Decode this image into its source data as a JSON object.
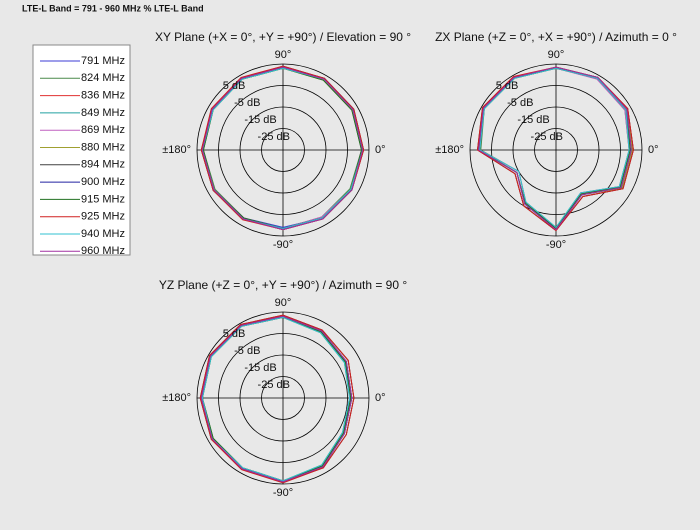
{
  "title": "LTE-L Band = 791 - 960 MHz % LTE-L Band",
  "legend": [
    {
      "name": "791 MHz",
      "color": "#3b3bd6"
    },
    {
      "name": "824 MHz",
      "color": "#4a8a4a"
    },
    {
      "name": "836 MHz",
      "color": "#e03030"
    },
    {
      "name": "849 MHz",
      "color": "#20a0a0"
    },
    {
      "name": "869 MHz",
      "color": "#c060c0"
    },
    {
      "name": "880 MHz",
      "color": "#a0a030"
    },
    {
      "name": "894 MHz",
      "color": "#404040"
    },
    {
      "name": "900 MHz",
      "color": "#2020a0"
    },
    {
      "name": "915 MHz",
      "color": "#207020"
    },
    {
      "name": "925 MHz",
      "color": "#d02020"
    },
    {
      "name": "940 MHz",
      "color": "#30c0d0"
    },
    {
      "name": "960 MHz",
      "color": "#a030a0"
    }
  ],
  "chart_data": [
    {
      "type": "polar",
      "title": "XY Plane (+X = 0°, +Y = +90°) / Elevation = 90 °",
      "theta": [
        0,
        30,
        60,
        90,
        120,
        150,
        180,
        210,
        240,
        270,
        300,
        330
      ],
      "rlim": [
        -35,
        5
      ],
      "rticks": [
        {
          "value": 5,
          "label": "5 dB"
        },
        {
          "value": -5,
          "label": "-5 dB"
        },
        {
          "value": -15,
          "label": "-15 dB"
        },
        {
          "value": -25,
          "label": "-25 dB"
        }
      ],
      "thetaticks": [
        {
          "value": 90,
          "label": "90°"
        },
        {
          "value": 0,
          "label": "0°"
        },
        {
          "value": -90,
          "label": "-90°"
        },
        {
          "value": 180,
          "label": "±180°"
        }
      ],
      "series": [
        {
          "values": [
            2,
            2.5,
            3,
            3.5,
            3.5,
            3,
            2.5,
            2,
            1.5,
            1,
            1.5,
            1.5
          ]
        },
        {
          "values": [
            1.5,
            2,
            3,
            3,
            3,
            2.5,
            2,
            1.5,
            1.5,
            1.5,
            1,
            1
          ]
        },
        {
          "values": [
            2.5,
            3,
            3.5,
            3.5,
            3.5,
            3,
            3,
            2.5,
            2,
            2,
            2,
            2
          ]
        },
        {
          "values": [
            2,
            2.5,
            3,
            3,
            3,
            3,
            2.5,
            2,
            2,
            1.5,
            1.5,
            2
          ]
        },
        {
          "values": [
            1.5,
            2.5,
            3,
            3.5,
            3,
            2.5,
            2.5,
            2,
            1.5,
            1.5,
            1,
            1.5
          ]
        },
        {
          "values": [
            2,
            2,
            2.5,
            3,
            3,
            3,
            2.5,
            2,
            2,
            2,
            1.5,
            1.5
          ]
        },
        {
          "values": [
            2.5,
            3,
            3.5,
            4,
            3.5,
            3,
            3,
            2.5,
            2,
            2,
            2,
            2
          ]
        },
        {
          "values": [
            2,
            3,
            3.5,
            3.5,
            3.5,
            3,
            2.5,
            2.5,
            2,
            1.5,
            1.5,
            2
          ]
        },
        {
          "values": [
            1.5,
            2,
            2.5,
            3,
            3,
            2.5,
            2,
            2,
            1.5,
            1.5,
            1.5,
            1.5
          ]
        },
        {
          "values": [
            2.5,
            3,
            3.5,
            4,
            4,
            3.5,
            3,
            2.5,
            2.5,
            2,
            2,
            2
          ]
        },
        {
          "values": [
            2,
            2.5,
            3,
            3,
            3,
            2.5,
            2.5,
            2,
            2,
            1.5,
            1.5,
            1.5
          ]
        },
        {
          "values": [
            2,
            2.5,
            3,
            3.5,
            3.5,
            3,
            2.5,
            2,
            2,
            2,
            2,
            2
          ]
        }
      ]
    },
    {
      "type": "polar",
      "title": "ZX Plane (+Z = 0°, +X = +90°) / Azimuth = 0 °",
      "theta": [
        0,
        30,
        60,
        90,
        120,
        150,
        180,
        210,
        240,
        270,
        300,
        330
      ],
      "rlim": [
        -35,
        5
      ],
      "rticks": [
        {
          "value": 5,
          "label": "5 dB"
        },
        {
          "value": -5,
          "label": "-5 dB"
        },
        {
          "value": -15,
          "label": "-15 dB"
        },
        {
          "value": -25,
          "label": "-25 dB"
        }
      ],
      "thetaticks": [
        {
          "value": 90,
          "label": "90°"
        },
        {
          "value": 0,
          "label": "0°"
        },
        {
          "value": -90,
          "label": "-90°"
        },
        {
          "value": 180,
          "label": "±180°"
        }
      ],
      "series": [
        {
          "values": [
            0,
            3,
            4,
            3,
            4,
            4,
            1,
            -14,
            -6,
            2,
            -11,
            0
          ]
        },
        {
          "values": [
            -1,
            2,
            3.5,
            3,
            3.5,
            3.5,
            0,
            -15,
            -7,
            1,
            -12,
            -1
          ]
        },
        {
          "values": [
            1,
            3.5,
            4,
            3.5,
            4,
            4,
            1.5,
            -13,
            -5,
            2.5,
            -10,
            1
          ]
        },
        {
          "values": [
            0,
            2.5,
            3.5,
            3,
            4,
            4,
            1,
            -14,
            -6,
            2,
            -11,
            0
          ]
        },
        {
          "values": [
            -1,
            2,
            3,
            3,
            3.5,
            3.5,
            0.5,
            -15,
            -7,
            1.5,
            -12,
            -1
          ]
        },
        {
          "values": [
            0.5,
            3,
            4,
            3.5,
            4,
            4,
            1,
            -14,
            -6,
            2,
            -11,
            0.5
          ]
        },
        {
          "values": [
            1,
            3.5,
            4,
            3.5,
            4,
            4.5,
            1.5,
            -13,
            -5,
            2.5,
            -10,
            1
          ]
        },
        {
          "values": [
            0,
            3,
            4,
            3,
            4,
            4,
            1,
            -14,
            -6,
            2,
            -11,
            0
          ]
        },
        {
          "values": [
            -0.5,
            2.5,
            3.5,
            3,
            3.5,
            3.5,
            0.5,
            -14,
            -6.5,
            1.5,
            -11.5,
            -0.5
          ]
        },
        {
          "values": [
            1,
            3.5,
            4,
            3.5,
            4.5,
            4.5,
            1.5,
            -13,
            -5,
            2.5,
            -10,
            1
          ]
        },
        {
          "values": [
            -1,
            2.5,
            3.5,
            3,
            3.5,
            3.5,
            0.5,
            -15,
            -7,
            1,
            -12,
            -1
          ]
        },
        {
          "values": [
            0,
            3,
            4,
            3.5,
            4,
            4,
            1,
            -14,
            -6,
            2,
            -11,
            0
          ]
        }
      ]
    },
    {
      "type": "polar",
      "title": "YZ Plane (+Z = 0°, +Y = +90°) / Azimuth = 90 °",
      "theta": [
        0,
        30,
        60,
        90,
        120,
        150,
        180,
        210,
        240,
        270,
        300,
        330
      ],
      "rlim": [
        -35,
        5
      ],
      "rticks": [
        {
          "value": 5,
          "label": "5 dB"
        },
        {
          "value": -5,
          "label": "-5 dB"
        },
        {
          "value": -15,
          "label": "-15 dB"
        },
        {
          "value": -25,
          "label": "-25 dB"
        }
      ],
      "thetaticks": [
        {
          "value": 90,
          "label": "90°"
        },
        {
          "value": 0,
          "label": "0°"
        },
        {
          "value": -90,
          "label": "-90°"
        },
        {
          "value": 180,
          "label": "±180°"
        }
      ],
      "series": [
        {
          "values": [
            -3,
            -1,
            1,
            3,
            4,
            4,
            3,
            3,
            3,
            4,
            2,
            -2
          ]
        },
        {
          "values": [
            -4,
            -2,
            0,
            2.5,
            3.5,
            3.5,
            2.5,
            2.5,
            2.5,
            3.5,
            1,
            -3
          ]
        },
        {
          "values": [
            -2,
            0,
            1.5,
            3.5,
            4,
            4,
            3,
            3,
            3,
            4,
            2.5,
            -1
          ]
        },
        {
          "values": [
            -3,
            -1,
            1,
            3,
            4,
            4,
            3,
            3,
            3,
            4,
            2,
            -2
          ]
        },
        {
          "values": [
            -4,
            -1.5,
            0.5,
            2.5,
            3.5,
            4,
            2.5,
            3,
            2.5,
            3.5,
            1.5,
            -3
          ]
        },
        {
          "values": [
            -3,
            -1,
            1,
            3,
            4,
            4,
            3,
            3,
            3,
            4,
            2,
            -2
          ]
        },
        {
          "values": [
            -2,
            0,
            1.5,
            3.5,
            4.5,
            4.5,
            3.5,
            3.5,
            3,
            4,
            2.5,
            -1
          ]
        },
        {
          "values": [
            -3,
            -1,
            1,
            3,
            4,
            4,
            3,
            3,
            3,
            4,
            2,
            -2
          ]
        },
        {
          "values": [
            -3.5,
            -1.5,
            0.5,
            2.5,
            3.5,
            3.5,
            2.5,
            2.5,
            2.5,
            3.5,
            1.5,
            -2.5
          ]
        },
        {
          "values": [
            -2,
            0,
            1.5,
            3.5,
            4.5,
            4.5,
            3.5,
            3.5,
            3.5,
            4.5,
            2.5,
            -1
          ]
        },
        {
          "values": [
            -4,
            -2,
            0,
            2.5,
            3.5,
            3.5,
            2.5,
            3,
            2.5,
            3.5,
            1,
            -3
          ]
        },
        {
          "values": [
            -3,
            -1,
            1,
            3,
            4,
            4,
            3,
            3,
            3,
            4,
            2,
            -2
          ]
        }
      ]
    }
  ]
}
